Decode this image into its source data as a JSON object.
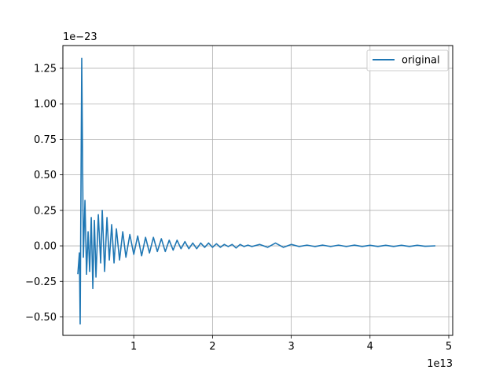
{
  "chart_data": {
    "type": "line",
    "title": "",
    "xlabel": "",
    "ylabel": "",
    "x_offset_label": "1e13",
    "y_offset_label": "1e−23",
    "xlim": [
      0.1,
      5.05
    ],
    "ylim": [
      -0.63,
      1.41
    ],
    "xticks": [
      1,
      2,
      3,
      4,
      5
    ],
    "xtick_labels": [
      "1",
      "2",
      "3",
      "4",
      "5"
    ],
    "yticks": [
      -0.5,
      -0.25,
      0.0,
      0.25,
      0.5,
      0.75,
      1.0,
      1.25
    ],
    "ytick_labels": [
      "−0.50",
      "−0.25",
      "0.00",
      "0.25",
      "0.50",
      "0.75",
      "1.00",
      "1.25"
    ],
    "grid": true,
    "legend_position": "upper right",
    "series": [
      {
        "name": "original",
        "color": "#1f77b4",
        "x": [
          0.29,
          0.31,
          0.32,
          0.34,
          0.36,
          0.38,
          0.4,
          0.42,
          0.44,
          0.46,
          0.48,
          0.5,
          0.52,
          0.55,
          0.58,
          0.6,
          0.63,
          0.66,
          0.69,
          0.72,
          0.75,
          0.78,
          0.82,
          0.86,
          0.9,
          0.95,
          1.0,
          1.05,
          1.1,
          1.15,
          1.2,
          1.25,
          1.3,
          1.35,
          1.4,
          1.45,
          1.5,
          1.55,
          1.6,
          1.65,
          1.7,
          1.75,
          1.8,
          1.85,
          1.9,
          1.95,
          2.0,
          2.05,
          2.1,
          2.15,
          2.2,
          2.25,
          2.3,
          2.35,
          2.4,
          2.45,
          2.5,
          2.6,
          2.7,
          2.8,
          2.9,
          3.0,
          3.1,
          3.2,
          3.3,
          3.4,
          3.5,
          3.6,
          3.7,
          3.8,
          3.9,
          4.0,
          4.1,
          4.2,
          4.3,
          4.4,
          4.5,
          4.6,
          4.7,
          4.83
        ],
        "values": [
          -0.2,
          -0.05,
          -0.55,
          1.32,
          -0.08,
          0.32,
          -0.2,
          0.1,
          -0.18,
          0.2,
          -0.3,
          0.18,
          -0.22,
          0.22,
          -0.12,
          0.25,
          -0.18,
          0.2,
          -0.1,
          0.15,
          -0.12,
          0.12,
          -0.1,
          0.1,
          -0.08,
          0.08,
          -0.06,
          0.07,
          -0.07,
          0.06,
          -0.05,
          0.06,
          -0.04,
          0.05,
          -0.04,
          0.04,
          -0.03,
          0.04,
          -0.02,
          0.03,
          -0.02,
          0.02,
          -0.02,
          0.02,
          -0.01,
          0.02,
          -0.01,
          0.015,
          -0.01,
          0.01,
          -0.005,
          0.01,
          -0.015,
          0.01,
          -0.005,
          0.005,
          -0.005,
          0.01,
          -0.01,
          0.02,
          -0.01,
          0.01,
          -0.005,
          0.005,
          -0.005,
          0.005,
          -0.005,
          0.005,
          -0.005,
          0.005,
          -0.004,
          0.004,
          -0.004,
          0.004,
          -0.004,
          0.004,
          -0.004,
          0.004,
          -0.003,
          0.0
        ]
      }
    ]
  }
}
